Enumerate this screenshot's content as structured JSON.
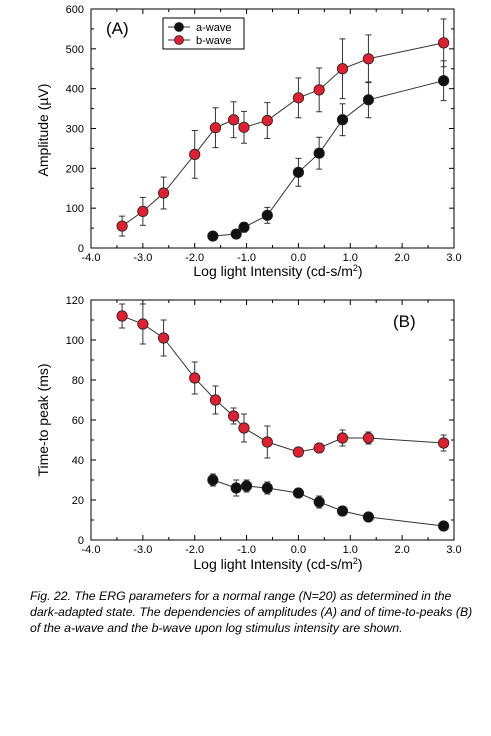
{
  "chart_data": [
    {
      "type": "scatter",
      "panel_label": "(A)",
      "xlabel": "Log light Intensity (cd-s/m",
      "xlabel_sup": "2",
      "xlabel_close": ")",
      "ylabel": "Amplitude (µV)",
      "xlim": [
        -4.0,
        3.0
      ],
      "ylim": [
        0,
        600
      ],
      "x_ticks": [
        -4.0,
        -3.0,
        -2.0,
        -1.0,
        0.0,
        1.0,
        2.0,
        3.0
      ],
      "x_tick_labels": [
        "-4.0",
        "-3.0",
        "-2.0",
        "-1.0",
        "0.0",
        "1.0",
        "2.0",
        "3.0"
      ],
      "y_ticks": [
        0,
        100,
        200,
        300,
        400,
        500,
        600
      ],
      "y_tick_labels": [
        "0",
        "100",
        "200",
        "300",
        "400",
        "500",
        "600"
      ],
      "legend_position": "top-left",
      "series": [
        {
          "name": "a-wave",
          "color": "#111111",
          "x": [
            -1.65,
            -1.2,
            -1.05,
            -0.6,
            0.0,
            0.4,
            0.85,
            1.35,
            2.8
          ],
          "y": [
            30,
            35,
            52,
            82,
            190,
            238,
            322,
            372,
            420
          ],
          "err": [
            10,
            10,
            12,
            20,
            35,
            40,
            40,
            45,
            50
          ]
        },
        {
          "name": "b-wave",
          "color": "#e0202e",
          "x": [
            -3.4,
            -3.0,
            -2.6,
            -2.0,
            -1.6,
            -1.25,
            -1.05,
            -0.6,
            0.0,
            0.4,
            0.85,
            1.35,
            2.8
          ],
          "y": [
            55,
            92,
            138,
            235,
            302,
            322,
            303,
            320,
            377,
            397,
            450,
            475,
            515
          ],
          "err": [
            25,
            35,
            40,
            60,
            50,
            45,
            40,
            45,
            50,
            55,
            75,
            60,
            60
          ]
        }
      ]
    },
    {
      "type": "scatter",
      "panel_label": "(B)",
      "xlabel": "Log light Intensity (cd-s/m",
      "xlabel_sup": "2",
      "xlabel_close": ")",
      "ylabel": "Time-to peak (ms)",
      "xlim": [
        -4.0,
        3.0
      ],
      "ylim": [
        0,
        120
      ],
      "x_ticks": [
        -4.0,
        -3.0,
        -2.0,
        -1.0,
        0.0,
        1.0,
        2.0,
        3.0
      ],
      "x_tick_labels": [
        "-4.0",
        "-3.0",
        "-2.0",
        "-1.0",
        "0.0",
        "1.0",
        "2.0",
        "3.0"
      ],
      "y_ticks": [
        0,
        20,
        40,
        60,
        80,
        100,
        120
      ],
      "y_tick_labels": [
        "0",
        "20",
        "40",
        "60",
        "80",
        "100",
        "120"
      ],
      "series": [
        {
          "name": "a-wave",
          "color": "#111111",
          "x": [
            -1.65,
            -1.2,
            -1.0,
            -0.6,
            0.0,
            0.4,
            0.85,
            1.35,
            2.8
          ],
          "y": [
            30,
            26,
            27,
            26,
            23.5,
            19,
            14.5,
            11.5,
            7
          ],
          "err": [
            3,
            4,
            3,
            3,
            2,
            3,
            1.5,
            1,
            1
          ]
        },
        {
          "name": "b-wave",
          "color": "#e0202e",
          "x": [
            -3.4,
            -3.0,
            -2.6,
            -2.0,
            -1.6,
            -1.25,
            -1.05,
            -0.6,
            0.0,
            0.4,
            0.85,
            1.35,
            2.8
          ],
          "y": [
            112,
            108,
            101,
            81,
            70,
            62,
            56,
            49,
            44,
            46,
            51,
            51,
            48.5
          ],
          "err": [
            6,
            10,
            9,
            8,
            7,
            4,
            7,
            8,
            2,
            2,
            4,
            3,
            4
          ]
        }
      ]
    }
  ],
  "caption": "Fig. 22. The ERG parameters for a normal range (N=20) as determined in the dark-adapted state. The dependencies of amplitudes (A) and of time-to-peaks (B) of the a-wave and the b-wave upon log stimulus intensity are shown."
}
